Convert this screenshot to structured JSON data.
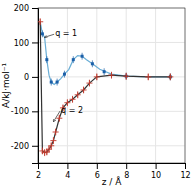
{
  "chart_data": {
    "type": "line",
    "title": "",
    "xlabel": "z / Å",
    "ylabel": "A/kJ·mol⁻¹",
    "xlim": [
      2,
      12
    ],
    "ylim": [
      -250,
      200
    ],
    "xticks": [
      2,
      4,
      6,
      8,
      10,
      12
    ],
    "yticks": [
      -200,
      -100,
      0,
      100,
      200
    ],
    "grid": true,
    "series": [
      {
        "type": "line",
        "color": "#6aaed6",
        "x": [
          2.15,
          2.3,
          2.45,
          2.6,
          2.75,
          2.9,
          3.1,
          3.3,
          3.55,
          3.8,
          4.1,
          4.4,
          4.7,
          5.0,
          5.3,
          5.7,
          6.2,
          7.0,
          8.0,
          9.5,
          11.0
        ],
        "values": [
          160,
          125,
          115,
          50,
          5,
          -15,
          -22,
          -15,
          -5,
          8,
          22,
          50,
          62,
          60,
          50,
          38,
          22,
          8,
          2,
          0,
          0
        ]
      },
      {
        "type": "scatter",
        "marker": "square",
        "color": "#1a5fa8",
        "x": [
          2.3,
          2.6,
          2.9,
          3.3,
          3.8,
          4.4,
          5.0,
          5.7,
          6.5,
          8.0,
          11.0
        ],
        "values": [
          125,
          50,
          -15,
          -15,
          8,
          50,
          60,
          38,
          15,
          2,
          0
        ],
        "error": [
          10,
          10,
          10,
          10,
          10,
          10,
          10,
          10,
          10,
          10,
          10
        ]
      },
      {
        "type": "scatter",
        "marker": "diamond",
        "color": "#555555",
        "x": [
          11.0
        ],
        "values": [
          0
        ]
      },
      {
        "type": "line",
        "color": "#333333",
        "x": [
          2.15,
          2.3,
          2.45,
          2.6,
          2.75,
          2.9,
          3.05,
          3.2,
          3.45,
          3.7,
          4.0,
          4.35,
          4.7,
          5.1,
          5.5,
          6.0,
          7.0,
          8.0,
          9.5,
          11.0
        ],
        "values": [
          160,
          -215,
          -220,
          -218,
          -210,
          -200,
          -185,
          -160,
          -120,
          -90,
          -75,
          -65,
          -52,
          -38,
          -18,
          0,
          5,
          2,
          0,
          0
        ]
      },
      {
        "type": "scatter",
        "marker": "plus",
        "color": "#c0392b",
        "x": [
          2.15,
          2.3,
          2.45,
          2.6,
          2.75,
          2.9,
          3.05,
          3.2,
          3.45,
          3.7,
          4.0,
          4.35,
          4.7,
          5.1,
          5.5,
          6.0,
          7.0,
          8.0,
          9.5,
          11.0
        ],
        "values": [
          160,
          -215,
          -220,
          -218,
          -210,
          -200,
          -185,
          -160,
          -120,
          -90,
          -75,
          -65,
          -52,
          -38,
          -18,
          0,
          5,
          2,
          0,
          0
        ],
        "error": [
          10,
          10,
          10,
          10,
          10,
          10,
          10,
          10,
          10,
          10,
          10,
          10,
          10,
          10,
          10,
          10,
          10,
          10,
          10,
          10
        ]
      }
    ],
    "annotations": [
      {
        "text": "q = 1",
        "x": 3.1,
        "y": 118,
        "arrow_x": 2.45,
        "arrow_y": 115
      },
      {
        "text": "q = 2",
        "x": 3.5,
        "y": -105,
        "arrow_x": 3.05,
        "arrow_y": -130
      }
    ]
  }
}
